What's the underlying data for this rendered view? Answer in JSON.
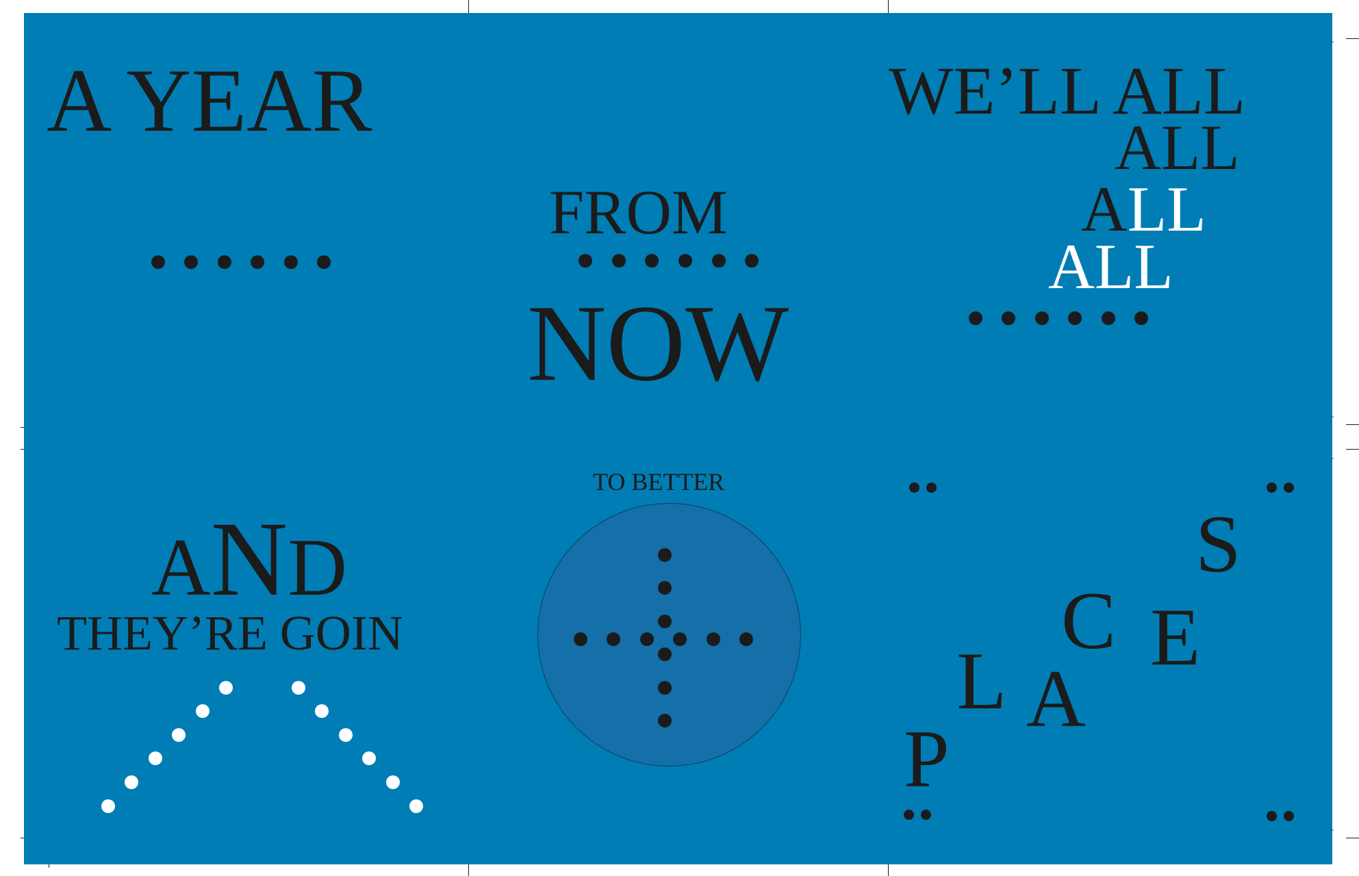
{
  "colors": {
    "panel": "#007db5",
    "circle": "#156fa8",
    "ink": "#1b1b1b",
    "highlight": "#ffffff"
  },
  "panel_1": {
    "text": "A YEAR"
  },
  "panel_2": {
    "line_1": "FROM",
    "line_2": "NOW"
  },
  "panel_3": {
    "line_1": "WE’LL ALL",
    "line_2": "ALL",
    "line_3_dark": "A",
    "line_3_light": "LL",
    "line_4": "ALL"
  },
  "panel_4": {
    "line_1_a": "A",
    "line_1_b": "N",
    "line_1_c": "D",
    "line_2": "THEY’RE GOIN"
  },
  "panel_5": {
    "caption": "TO BETTER"
  },
  "panel_6": {
    "letters": [
      "P",
      "L",
      "A",
      "C",
      "E",
      "S"
    ]
  }
}
